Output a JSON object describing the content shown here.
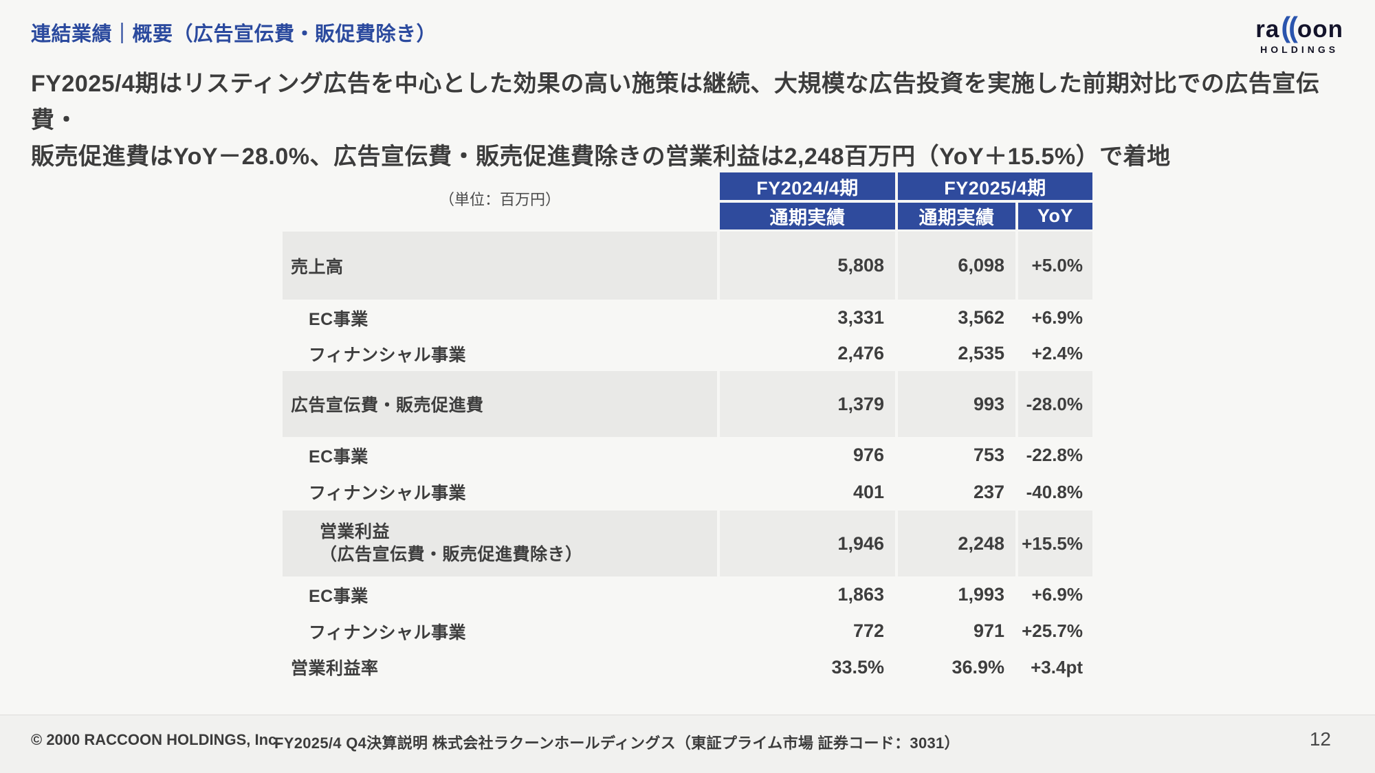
{
  "page": {
    "title": "連結業績｜概要（広告宣伝費・販促費除き）",
    "headline_line1": "FY2025/4期はリスティング広告を中心とした効果の高い施策は継続、大規模な広告投資を実施した前期対比での広告宣伝費・",
    "headline_line2": "販売促進費はYoY－28.0%、広告宣伝費・販売促進費除きの営業利益は2,248百万円（YoY＋15.5%）で着地",
    "page_number": "12"
  },
  "logo": {
    "left": "ra",
    "mark": "((",
    "right": "oon",
    "sub": "HOLDINGS"
  },
  "table": {
    "unit_label": "（単位：百万円）",
    "col_groups": {
      "fy2024": "FY2024/4期",
      "fy2025": "FY2025/4期"
    },
    "sub_headers": {
      "fy2024_actual": "通期実績",
      "fy2025_actual": "通期実績",
      "yoy": "YoY"
    },
    "rows": [
      {
        "type": "major",
        "label": "売上高",
        "label2": "",
        "fy2024": "5,808",
        "fy2025": "6,098",
        "yoy": "+5.0%"
      },
      {
        "type": "sub",
        "label": "EC事業",
        "label2": "",
        "fy2024": "3,331",
        "fy2025": "3,562",
        "yoy": "+6.9%"
      },
      {
        "type": "sub",
        "label": "フィナンシャル事業",
        "label2": "",
        "fy2024": "2,476",
        "fy2025": "2,535",
        "yoy": "+2.4%"
      },
      {
        "type": "major",
        "label": "広告宣伝費・販売促進費",
        "label2": "",
        "fy2024": "1,379",
        "fy2025": "993",
        "yoy": "-28.0%"
      },
      {
        "type": "sub",
        "label": "EC事業",
        "label2": "",
        "fy2024": "976",
        "fy2025": "753",
        "yoy": "-22.8%"
      },
      {
        "type": "sub",
        "label": "フィナンシャル事業",
        "label2": "",
        "fy2024": "401",
        "fy2025": "237",
        "yoy": "-40.8%"
      },
      {
        "type": "major2",
        "label": "営業利益",
        "label2": "（広告宣伝費・販売促進費除き）",
        "fy2024": "1,946",
        "fy2025": "2,248",
        "yoy": "+15.5%"
      },
      {
        "type": "sub",
        "label": "EC事業",
        "label2": "",
        "fy2024": "1,863",
        "fy2025": "1,993",
        "yoy": "+6.9%"
      },
      {
        "type": "sub",
        "label": "フィナンシャル事業",
        "label2": "",
        "fy2024": "772",
        "fy2025": "971",
        "yoy": "+25.7%"
      },
      {
        "type": "plain",
        "label": "営業利益率",
        "label2": "",
        "fy2024": "33.5%",
        "fy2025": "36.9%",
        "yoy": "+3.4pt"
      }
    ]
  },
  "footer": {
    "copyright": "© 2000 RACCOON HOLDINGS, Inc.",
    "description": "FY2025/4 Q4決算説明 株式会社ラクーンホールディングス（東証プライム市場 証券コード：3031）"
  },
  "colors": {
    "accent_blue": "#2f4b9d",
    "title_blue": "#2b4a9e",
    "row_gray": "#e9e9e7",
    "text_dark": "#3e3e3e",
    "footer_bg": "#f1f1ef"
  }
}
